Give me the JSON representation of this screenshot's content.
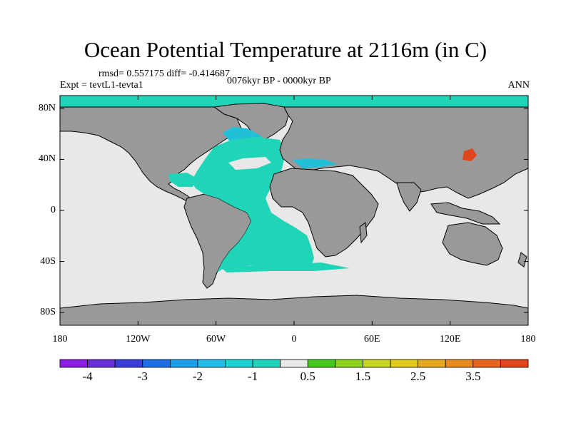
{
  "title": "Ocean Potential Temperature at 2116m (in C)",
  "stats_line": "rmsd= 0.557175 diff= -0.414687",
  "expt_line": "Expt = tevtL1-tevta1",
  "period_line": "0076kyr BP - 0000kyr BP",
  "season": "ANN",
  "lat_ticks": [
    {
      "label": "80N",
      "lat": 80
    },
    {
      "label": "40N",
      "lat": 40
    },
    {
      "label": "0",
      "lat": 0
    },
    {
      "label": "40S",
      "lat": -40
    },
    {
      "label": "80S",
      "lat": -80
    }
  ],
  "lon_ticks": [
    {
      "label": "180",
      "lon": -180
    },
    {
      "label": "120W",
      "lon": -120
    },
    {
      "label": "60W",
      "lon": -60
    },
    {
      "label": "0",
      "lon": 0
    },
    {
      "label": "60E",
      "lon": 60
    },
    {
      "label": "120E",
      "lon": 120
    },
    {
      "label": "180",
      "lon": 180
    }
  ],
  "colorbar": {
    "colors": [
      "#8a1ee0",
      "#6a2ed8",
      "#3a3ed8",
      "#1e6ee6",
      "#1c9ee8",
      "#22bce6",
      "#1ed0d0",
      "#20d2b8",
      "#e8e8e8",
      "#46c81e",
      "#8ed21e",
      "#c8d426",
      "#e0c81e",
      "#e6a81e",
      "#e68a1e",
      "#e6641e",
      "#e2461e"
    ],
    "labels": [
      {
        "text": "-4",
        "index": 1
      },
      {
        "text": "-3",
        "index": 3
      },
      {
        "text": "-2",
        "index": 5
      },
      {
        "text": "-1",
        "index": 7
      },
      {
        "text": "0.5",
        "index": 9
      },
      {
        "text": "1.5",
        "index": 11
      },
      {
        "text": "2.5",
        "index": 13
      },
      {
        "text": "3.5",
        "index": 15
      }
    ]
  },
  "palette": {
    "land": "#999999",
    "ocean_neutral": "#e8e8e8",
    "anomaly_neg": "#20d4b8",
    "anomaly_neg2": "#22c0d8",
    "anomaly_pos": "#e0461e"
  }
}
